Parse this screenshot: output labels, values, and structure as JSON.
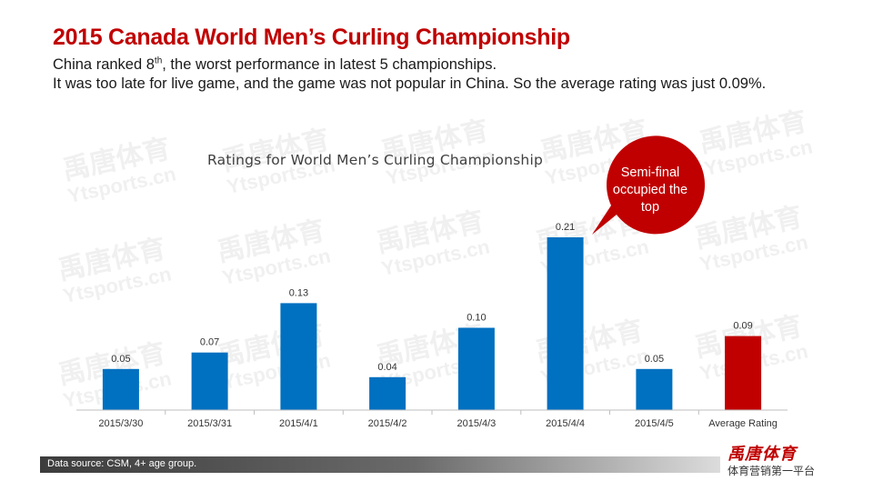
{
  "slide": {
    "title": "2015 Canada World Men’s Curling Championship",
    "subtitle_line1_pre": "China ranked 8",
    "subtitle_line1_sup": "th",
    "subtitle_line1_post": ", the worst performance in latest 5 championships.",
    "subtitle_line2": "It was too late for live game,  and the game was not popular in China. So the average rating was just 0.09%.",
    "callout": "Semi-final occupied the top",
    "data_source": "Data source: CSM, 4+ age group.",
    "brand_logo": "禹唐体育",
    "brand_tagline": "体育营销第一平台",
    "watermark_cn": "禹唐体育",
    "watermark_en": "Ytsports.cn"
  },
  "chart_data": {
    "type": "bar",
    "title": "Ratings for World Men’s Curling Championship",
    "categories": [
      "2015/3/30",
      "2015/3/31",
      "2015/4/1",
      "2015/4/2",
      "2015/4/3",
      "2015/4/4",
      "2015/4/5",
      "Average Rating"
    ],
    "values": [
      0.05,
      0.07,
      0.13,
      0.04,
      0.1,
      0.21,
      0.05,
      0.09
    ],
    "value_labels": [
      "0.05",
      "0.07",
      "0.13",
      "0.04",
      "0.10",
      "0.21",
      "0.05",
      "0.09"
    ],
    "ylim": [
      0,
      0.21
    ],
    "grid": false,
    "legend": "none",
    "colors": {
      "bar": "#0070c0",
      "average_bar": "#c00000",
      "axis": "#bfbfbf",
      "callout": "#c00000"
    }
  }
}
